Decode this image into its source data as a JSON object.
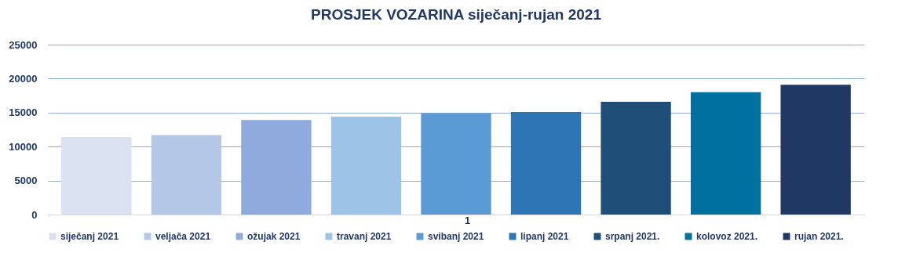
{
  "chart_data": {
    "type": "bar",
    "title": "PROSJEK VOZARINA siječanj-rujan 2021",
    "categories": [
      null,
      null,
      null,
      null,
      null,
      null,
      null,
      null,
      null
    ],
    "series": [
      {
        "name": "siječanj 2021",
        "color": "#dae1f1",
        "values": [
          11400,
          null,
          null,
          null,
          null,
          null,
          null,
          null,
          null
        ]
      },
      {
        "name": "veljača 2021",
        "color": "#b4c7e7",
        "values": [
          null,
          11700,
          null,
          null,
          null,
          null,
          null,
          null,
          null
        ]
      },
      {
        "name": "ožujak 2021",
        "color": "#8faadc",
        "values": [
          null,
          null,
          13900,
          null,
          null,
          null,
          null,
          null,
          null
        ]
      },
      {
        "name": "travanj 2021",
        "color": "#9dc3e6",
        "values": [
          null,
          null,
          null,
          14400,
          null,
          null,
          null,
          null,
          null
        ]
      },
      {
        "name": "svibanj 2021",
        "color": "#5b9bd5",
        "values": [
          null,
          null,
          null,
          null,
          14900,
          null,
          null,
          null,
          null
        ]
      },
      {
        "name": "lipanj 2021",
        "color": "#2e75b6",
        "values": [
          null,
          null,
          null,
          null,
          null,
          15100,
          null,
          null,
          null
        ]
      },
      {
        "name": "srpanj 2021.",
        "color": "#1f4e79",
        "values": [
          null,
          null,
          null,
          null,
          null,
          null,
          16600,
          null,
          null
        ]
      },
      {
        "name": "kolovoz 2021.",
        "color": "#00719f",
        "values": [
          null,
          null,
          null,
          null,
          null,
          null,
          null,
          18000,
          null
        ]
      },
      {
        "name": "rujan 2021.",
        "color": "#203864",
        "values": [
          null,
          null,
          null,
          null,
          null,
          null,
          null,
          null,
          19100
        ]
      }
    ],
    "ylim": [
      0,
      25000
    ],
    "yticks": [
      0,
      5000,
      10000,
      15000,
      20000,
      25000
    ],
    "grid": "y",
    "legend": "bottom",
    "tick_labels": "y",
    "annotations": [
      "1"
    ]
  }
}
